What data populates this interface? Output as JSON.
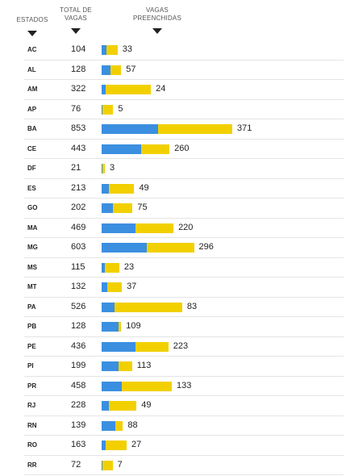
{
  "headers": {
    "state": "ESTADOS",
    "total": "TOTAL DE VAGAS",
    "filled": "VAGAS PREENCHIDAS"
  },
  "colors": {
    "filled_bar": "#3b8fe0",
    "total_bar": "#f2d000"
  },
  "chart_data": {
    "type": "bar",
    "orientation": "horizontal",
    "categories": [
      "AC",
      "AL",
      "AM",
      "AP",
      "BA",
      "CE",
      "DF",
      "ES",
      "GO",
      "MA",
      "MG",
      "MS",
      "MT",
      "PA",
      "PB",
      "PE",
      "PI",
      "PR",
      "RJ",
      "RN",
      "RO",
      "RR"
    ],
    "series": [
      {
        "name": "TOTAL DE VAGAS",
        "values": [
          104,
          128,
          322,
          76,
          853,
          443,
          21,
          213,
          202,
          469,
          603,
          115,
          132,
          526,
          128,
          436,
          199,
          458,
          228,
          139,
          163,
          72
        ]
      },
      {
        "name": "VAGAS PREENCHIDAS",
        "values": [
          33,
          57,
          24,
          5,
          371,
          260,
          3,
          49,
          75,
          220,
          296,
          23,
          37,
          83,
          109,
          223,
          113,
          133,
          49,
          88,
          27,
          7
        ]
      }
    ],
    "xlim": [
      0,
      853
    ]
  }
}
